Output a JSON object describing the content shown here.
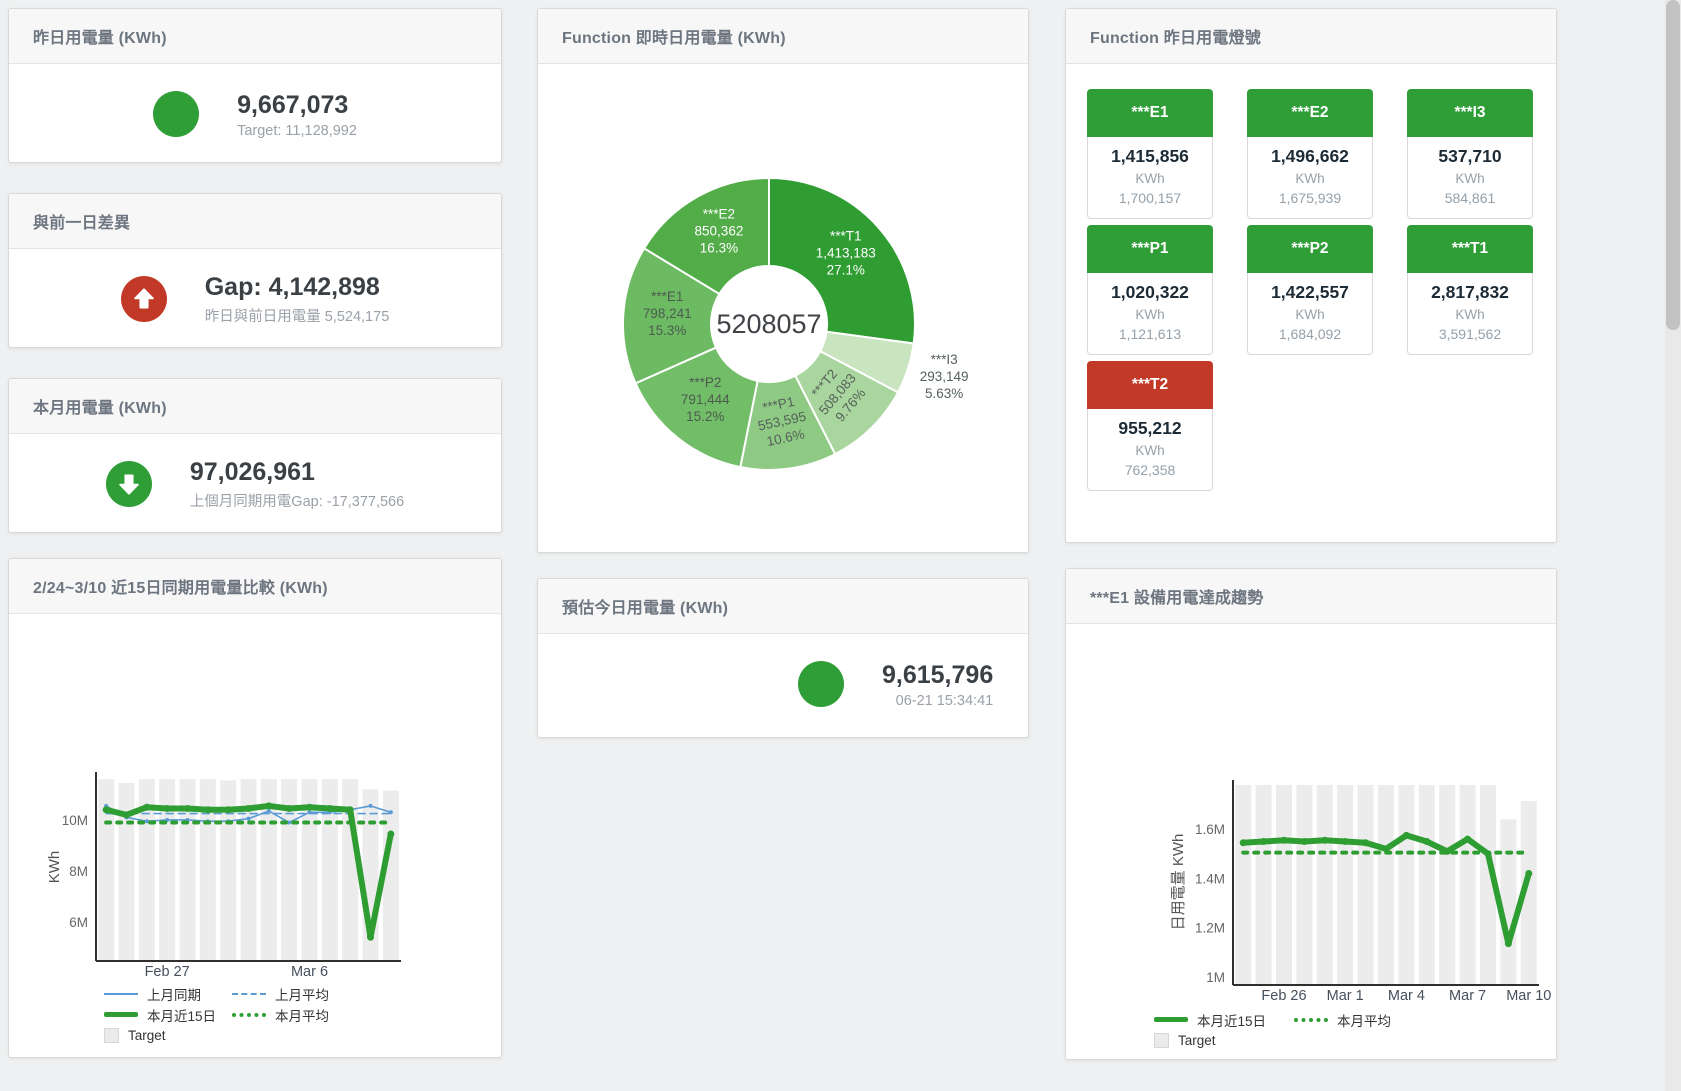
{
  "colors": {
    "green": "#2f9e37",
    "red": "#c23a27",
    "blue_line": "#5b9bd5",
    "green_line": "#2f9e32",
    "bar_gray": "#ececec",
    "panel_title": "#6d7680",
    "value_text": "#3b4045",
    "sub_text": "#9aa1a8"
  },
  "panels": {
    "yesterday": {
      "title": "昨日用電量 (KWh)",
      "value": "9,667,073",
      "sub": "Target: 11,128,992"
    },
    "gap_prev_day": {
      "title": "與前一日差異",
      "value": "Gap: 4,142,898",
      "sub": "昨日與前日用電量 5,524,175"
    },
    "month": {
      "title": "本月用電量 (KWh)",
      "value": "97,026,961",
      "sub": "上個月同期用電Gap: -17,377,566"
    },
    "realtime_donut": {
      "title": "Function 即時日用電量 (KWh)"
    },
    "forecast": {
      "title": "預估今日用電量 (KWh)",
      "value": "9,615,796",
      "timestamp": "06-21 15:34:41"
    },
    "lights": {
      "title": "Function 昨日用電燈號",
      "unit": "KWh",
      "tiles": [
        {
          "name": "***E1",
          "value": "1,415,856",
          "target": "1,700,157",
          "color": "#2f9e37"
        },
        {
          "name": "***E2",
          "value": "1,496,662",
          "target": "1,675,939",
          "color": "#2f9e37"
        },
        {
          "name": "***I3",
          "value": "537,710",
          "target": "584,861",
          "color": "#2f9e37"
        },
        {
          "name": "***P1",
          "value": "1,020,322",
          "target": "1,121,613",
          "color": "#2f9e37"
        },
        {
          "name": "***P2",
          "value": "1,422,557",
          "target": "1,684,092",
          "color": "#2f9e37"
        },
        {
          "name": "***T1",
          "value": "2,817,832",
          "target": "3,591,562",
          "color": "#2f9e37"
        },
        {
          "name": "***T2",
          "value": "955,212",
          "target": "762,358",
          "color": "#c23a27"
        }
      ]
    },
    "compare15": {
      "title": "2/24~3/10 近15日同期用電量比較 (KWh)"
    },
    "e1_trend": {
      "title": "***E1 設備用電達成趨勢"
    }
  },
  "chart_data": [
    {
      "type": "pie",
      "title": "Function 即時日用電量 (KWh)",
      "center_label": "5208057",
      "unit": "KWh",
      "slices": [
        {
          "name": "***T1",
          "value": 1413183,
          "value_label": "1,413,183",
          "pct": "27.1%",
          "color": "#2f9d32",
          "label_color": "#ffffff",
          "label_pos": "inside",
          "label_rotate": 0
        },
        {
          "name": "***I3",
          "value": 293149,
          "value_label": "293,149",
          "pct": "5.63%",
          "color": "#c8e5c0",
          "label_color": "#55615a",
          "label_pos": "outside",
          "label_rotate": 0
        },
        {
          "name": "***T2",
          "value": 508083,
          "value_label": "508,083",
          "pct": "9.76%",
          "color": "#a9d69e",
          "label_color": "#55615a",
          "label_pos": "inside",
          "label_rotate": -50
        },
        {
          "name": "***P1",
          "value": 553595,
          "value_label": "553,595",
          "pct": "10.6%",
          "color": "#8eca84",
          "label_color": "#55615a",
          "label_pos": "inside",
          "label_rotate": -12
        },
        {
          "name": "***P2",
          "value": 791444,
          "value_label": "791,444",
          "pct": "15.2%",
          "color": "#72be68",
          "label_color": "#4d5a50",
          "label_pos": "inside",
          "label_rotate": 0
        },
        {
          "name": "***E1",
          "value": 798241,
          "value_label": "798,241",
          "pct": "15.3%",
          "color": "#6cbb62",
          "label_color": "#4d5a50",
          "label_pos": "inside",
          "label_rotate": 0
        },
        {
          "name": "***E2",
          "value": 850362,
          "value_label": "850,362",
          "pct": "16.3%",
          "color": "#52ac48",
          "label_color": "#ffffff",
          "label_pos": "inside",
          "label_rotate": 0
        }
      ]
    },
    {
      "type": "line",
      "title": "2/24~3/10 近15日同期用電量比較 (KWh)",
      "ylabel": "KWh",
      "categories": [
        "2/24",
        "2/25",
        "2/26",
        "2/27",
        "2/28",
        "3/1",
        "3/2",
        "3/3",
        "3/4",
        "3/5",
        "3/6",
        "3/7",
        "3/8",
        "3/9",
        "3/10"
      ],
      "ylim": [
        4470000,
        11880000
      ],
      "yticks": [
        {
          "v": 6000000,
          "label": "6M"
        },
        {
          "v": 8000000,
          "label": "8M"
        },
        {
          "v": 10000000,
          "label": "10M"
        }
      ],
      "xticks": [
        {
          "i": 3,
          "label": "Feb 27"
        },
        {
          "i": 10,
          "label": "Mar 6"
        }
      ],
      "bar_color": "#ececec",
      "target_bars": [
        11600000,
        11450000,
        11600000,
        11600000,
        11600000,
        11600000,
        11550000,
        11600000,
        11600000,
        11600000,
        11600000,
        11600000,
        11600000,
        11200000,
        11150000
      ],
      "series": [
        {
          "name": "上月同期",
          "color": "#5b9bd5",
          "width": 1.6,
          "dash": "",
          "dots": 2,
          "values": [
            10550000,
            10100000,
            9950000,
            10000000,
            10000000,
            9950000,
            9950000,
            10050000,
            10350000,
            9900000,
            10300000,
            10300000,
            10400000,
            10550000,
            10300000
          ]
        },
        {
          "name": "上月平均",
          "color": "#5b9bd5",
          "width": 1.6,
          "dash": "7,5",
          "dots": 0,
          "constant": 10250000
        },
        {
          "name": "本月近15日",
          "color": "#2f9e32",
          "width": 6,
          "dash": "",
          "dots": 3.5,
          "values": [
            10400000,
            10200000,
            10500000,
            10450000,
            10450000,
            10400000,
            10400000,
            10450000,
            10550000,
            10450000,
            10500000,
            10450000,
            10400000,
            5400000,
            9450000
          ]
        },
        {
          "name": "本月平均",
          "color": "#2f9e32",
          "width": 4,
          "dash": "4,7",
          "dots": 0,
          "constant": 9900000
        }
      ],
      "legend_rows": [
        [
          {
            "label": "上月同期",
            "marker": "blue-line"
          },
          {
            "label": "上月平均",
            "marker": "blue-dash"
          }
        ],
        [
          {
            "label": "本月近15日",
            "marker": "green-thick"
          },
          {
            "label": "本月平均",
            "marker": "green-dot"
          }
        ],
        [
          {
            "label": "Target",
            "marker": "target-box"
          }
        ]
      ]
    },
    {
      "type": "line",
      "title": "***E1 設備用電達成趨勢",
      "ylabel": "日用電量 KWh",
      "categories": [
        "2/24",
        "2/25",
        "2/26",
        "2/27",
        "2/28",
        "3/1",
        "3/2",
        "3/3",
        "3/4",
        "3/5",
        "3/6",
        "3/7",
        "3/8",
        "3/9",
        "3/10"
      ],
      "ylim": [
        967000,
        1800000
      ],
      "yticks": [
        {
          "v": 1000000,
          "label": "1M"
        },
        {
          "v": 1200000,
          "label": "1.2M"
        },
        {
          "v": 1400000,
          "label": "1.4M"
        },
        {
          "v": 1600000,
          "label": "1.6M"
        }
      ],
      "xticks": [
        {
          "i": 2,
          "label": "Feb 26"
        },
        {
          "i": 5,
          "label": "Mar 1"
        },
        {
          "i": 8,
          "label": "Mar 4"
        },
        {
          "i": 11,
          "label": "Mar 7"
        },
        {
          "i": 14,
          "label": "Mar 10"
        }
      ],
      "bar_color": "#ececec",
      "target_bars": [
        1780000,
        1780000,
        1780000,
        1780000,
        1780000,
        1780000,
        1780000,
        1780000,
        1780000,
        1780000,
        1780000,
        1780000,
        1780000,
        1640000,
        1715000
      ],
      "series": [
        {
          "name": "本月近15日",
          "color": "#2f9e32",
          "width": 6,
          "dash": "",
          "dots": 3.5,
          "values": [
            1545000,
            1550000,
            1555000,
            1550000,
            1555000,
            1550000,
            1545000,
            1520000,
            1575000,
            1550000,
            1510000,
            1560000,
            1500000,
            1135000,
            1420000
          ]
        },
        {
          "name": "本月平均",
          "color": "#2f9e32",
          "width": 4,
          "dash": "4,7",
          "dots": 0,
          "constant": 1505000
        }
      ],
      "legend_rows": [
        [
          {
            "label": "本月近15日",
            "marker": "green-thick"
          },
          {
            "label": "本月平均",
            "marker": "green-dot"
          }
        ],
        [
          {
            "label": "Target",
            "marker": "target-box"
          }
        ]
      ]
    }
  ]
}
